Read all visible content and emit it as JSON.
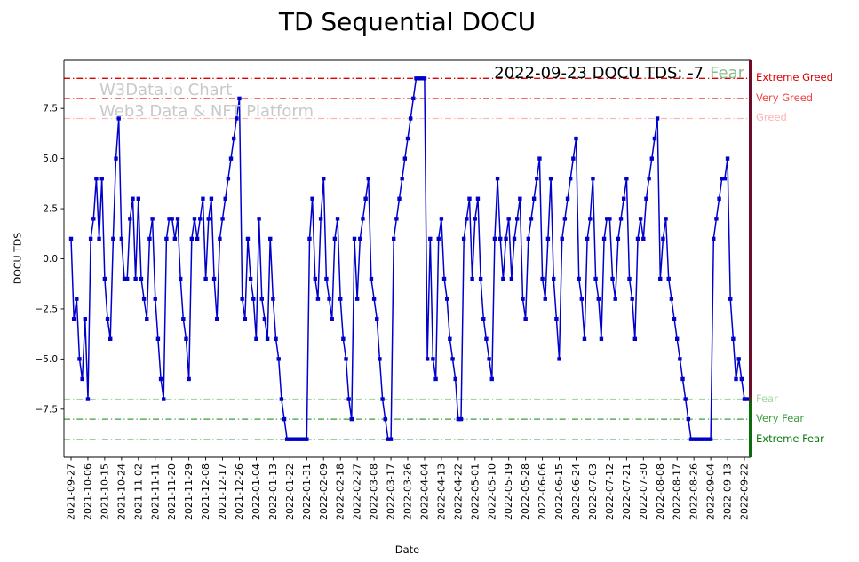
{
  "chart_data": {
    "type": "line",
    "title": "TD Sequential DOCU",
    "xlabel": "Date",
    "ylabel": "DOCU TDS",
    "ylim": [
      -9.9,
      9.9
    ],
    "yticks": [
      7.5,
      5.0,
      2.5,
      0.0,
      -2.5,
      -5.0,
      -7.5
    ],
    "ytick_labels": [
      "7.5",
      "5.0",
      "2.5",
      "0.0",
      "−2.5",
      "−5.0",
      "−7.5"
    ],
    "line_color": "#0000cd",
    "marker": "square",
    "legend": "none",
    "grid": false,
    "x_tick_every": 6,
    "x_tick_labels": [
      "2021-09-27",
      "2021-10-06",
      "2021-10-15",
      "2021-10-24",
      "2021-11-02",
      "2021-11-11",
      "2021-11-20",
      "2021-11-29",
      "2021-12-08",
      "2021-12-17",
      "2021-12-26",
      "2022-01-04",
      "2022-01-13",
      "2022-01-22",
      "2022-01-31",
      "2022-02-09",
      "2022-02-18",
      "2022-02-27",
      "2022-03-08",
      "2022-03-17",
      "2022-03-26",
      "2022-04-04",
      "2022-04-13",
      "2022-04-22",
      "2022-05-01",
      "2022-05-10",
      "2022-05-19",
      "2022-05-28",
      "2022-06-06",
      "2022-06-15",
      "2022-06-24",
      "2022-07-03",
      "2022-07-12",
      "2022-07-21",
      "2022-07-30",
      "2022-08-08",
      "2022-08-17",
      "2022-08-26",
      "2022-09-04",
      "2022-09-13",
      "2022-09-22"
    ],
    "values": [
      1,
      -3,
      -2,
      -5,
      -6,
      -3,
      -7,
      1,
      2,
      4,
      1,
      4,
      -1,
      -3,
      -4,
      1,
      5,
      7,
      1,
      -1,
      -1,
      2,
      3,
      -1,
      3,
      -1,
      -2,
      -3,
      1,
      2,
      -2,
      -4,
      -6,
      -7,
      1,
      2,
      2,
      1,
      2,
      -1,
      -3,
      -4,
      -6,
      1,
      2,
      1,
      2,
      3,
      -1,
      2,
      3,
      -1,
      -3,
      1,
      2,
      3,
      4,
      5,
      6,
      7,
      8,
      -2,
      -3,
      1,
      -1,
      -2,
      -4,
      2,
      -2,
      -3,
      -4,
      1,
      -2,
      -4,
      -5,
      -7,
      -8,
      -9,
      -9,
      -9,
      -9,
      -9,
      -9,
      -9,
      -9,
      1,
      3,
      -1,
      -2,
      2,
      4,
      -1,
      -2,
      -3,
      1,
      2,
      -2,
      -4,
      -5,
      -7,
      -8,
      1,
      -2,
      1,
      2,
      3,
      4,
      -1,
      -2,
      -3,
      -5,
      -7,
      -8,
      -9,
      -9,
      1,
      2,
      3,
      4,
      5,
      6,
      7,
      8,
      9,
      9,
      9,
      9,
      -5,
      1,
      -5,
      -6,
      1,
      2,
      -1,
      -2,
      -4,
      -5,
      -6,
      -8,
      -8,
      1,
      2,
      3,
      -1,
      2,
      3,
      -1,
      -3,
      -4,
      -5,
      -6,
      1,
      4,
      1,
      -1,
      1,
      2,
      -1,
      1,
      2,
      3,
      -2,
      -3,
      1,
      2,
      3,
      4,
      5,
      -1,
      -2,
      1,
      4,
      -1,
      -3,
      -5,
      1,
      2,
      3,
      4,
      5,
      6,
      -1,
      -2,
      -4,
      1,
      2,
      4,
      -1,
      -2,
      -4,
      1,
      2,
      2,
      -1,
      -2,
      1,
      2,
      3,
      4,
      -1,
      -2,
      -4,
      1,
      2,
      1,
      3,
      4,
      5,
      6,
      7,
      -1,
      1,
      2,
      -1,
      -2,
      -3,
      -4,
      -5,
      -6,
      -7,
      -8,
      -9,
      -9,
      -9,
      -9,
      -9,
      -9,
      -9,
      -9,
      1,
      2,
      3,
      4,
      4,
      5,
      -2,
      -4,
      -6,
      -5,
      -6,
      -7,
      -7
    ],
    "thresholds": [
      {
        "y": 9,
        "label": "Extreme Greed",
        "color": "#dd0000"
      },
      {
        "y": 8,
        "label": "Very Greed",
        "color": "#ee4444"
      },
      {
        "y": 7,
        "label": "Greed",
        "color": "#ffb3b3"
      },
      {
        "y": -7,
        "label": "Fear",
        "color": "#a6d6a6"
      },
      {
        "y": -8,
        "label": "Very Fear",
        "color": "#3c9e3c"
      },
      {
        "y": -9,
        "label": "Extreme Fear",
        "color": "#0a7a0a"
      }
    ],
    "annotation": {
      "text": "2022-09-23 DOCU TDS: -7",
      "status": "Fear",
      "status_color": "#8fbc8f"
    },
    "watermark": {
      "line1": "W3Data.io Chart",
      "line2": "Web3 Data & NFT Platform"
    },
    "right_spine_colors": {
      "top": "#6e0b2a",
      "bottom": "#0a6b0a"
    }
  }
}
